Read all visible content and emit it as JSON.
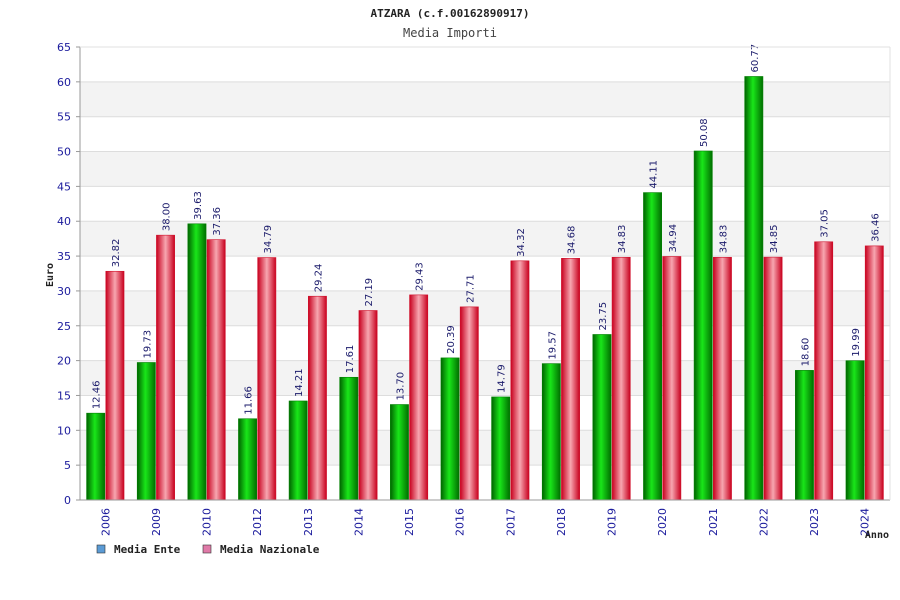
{
  "chart_data": {
    "type": "bar",
    "title": "ATZARA (c.f.00162890917)",
    "subtitle": "Media Importi",
    "xlabel": "Anno",
    "ylabel": "Euro",
    "ylim": [
      0,
      65
    ],
    "y_ticks": [
      0,
      5,
      10,
      15,
      20,
      25,
      30,
      35,
      40,
      45,
      50,
      55,
      60,
      65
    ],
    "grid": true,
    "legend_position": "bottom-left",
    "categories": [
      "2006",
      "2009",
      "2010",
      "2012",
      "2013",
      "2014",
      "2015",
      "2016",
      "2017",
      "2018",
      "2019",
      "2020",
      "2021",
      "2022",
      "2023",
      "2024"
    ],
    "series": [
      {
        "name": "Media Ente",
        "color": "#00b400",
        "values": [
          12.46,
          19.73,
          39.63,
          11.66,
          14.21,
          17.61,
          13.7,
          20.39,
          14.79,
          19.57,
          23.75,
          44.11,
          50.08,
          60.77,
          18.6,
          19.99
        ],
        "labels": [
          "12.46",
          "19.73",
          "39.63",
          "11.66",
          "14.21",
          "17.61",
          "13.70",
          "20.39",
          "14.79",
          "19.57",
          "23.75",
          "44.11",
          "50.08",
          "60.77",
          "18.60",
          "19.99"
        ]
      },
      {
        "name": "Media Nazionale",
        "color": "#e8192c",
        "values": [
          32.82,
          38.0,
          37.36,
          34.79,
          29.24,
          27.19,
          29.43,
          27.71,
          34.32,
          34.68,
          34.83,
          34.94,
          34.83,
          34.85,
          37.05,
          36.46
        ],
        "labels": [
          "32.82",
          "38.00",
          "37.36",
          "34.79",
          "29.24",
          "27.19",
          "29.43",
          "27.71",
          "34.32",
          "34.68",
          "34.83",
          "34.94",
          "34.83",
          "34.85",
          "37.05",
          "36.46"
        ]
      }
    ]
  },
  "legend_colors": [
    "#5b9bd5",
    "#e07aa8"
  ]
}
